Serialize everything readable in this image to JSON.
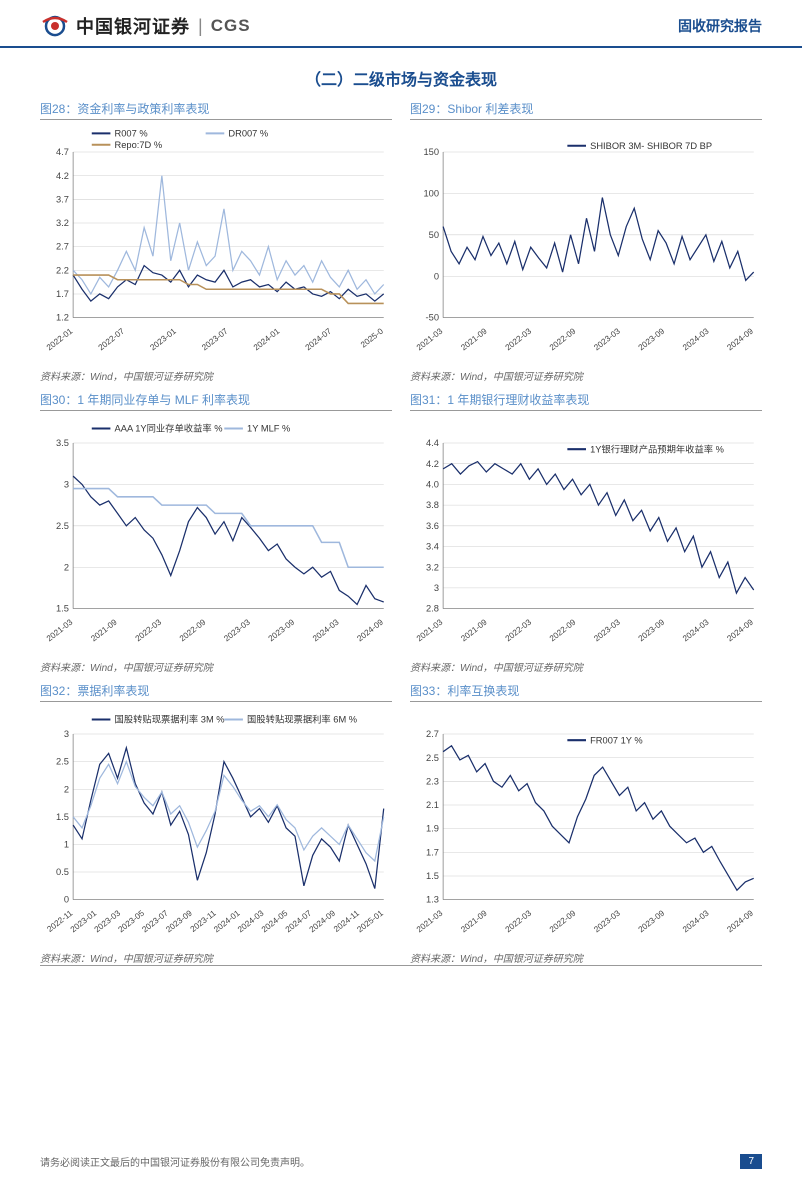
{
  "header": {
    "logo_cn": "中国银河证券",
    "logo_en": "CGS",
    "right_text": "固收研究报告"
  },
  "section_title": "（二）二级市场与资金表现",
  "source_text": "资料来源：Wind，中国银河证券研究院",
  "footer": {
    "disclaimer": "请务必阅读正文最后的中国银河证券股份有限公司免责声明。",
    "page": "7"
  },
  "colors": {
    "brand": "#1a4d8f",
    "accent": "#5a8fc9",
    "series_dark": "#1a2f6b",
    "series_light": "#9fb8dd",
    "series_gold": "#b8915a",
    "grid": "#d0d0d0",
    "axis": "#888"
  },
  "charts": [
    {
      "id": "c28",
      "title_prefix": "图28：",
      "title": "资金利率与政策利率表现",
      "type": "line",
      "ylim": [
        1.2,
        4.7
      ],
      "ytick_step": 0.5,
      "x_labels": [
        "2022-01",
        "2022-07",
        "2023-01",
        "2023-07",
        "2024-01",
        "2024-07",
        "2025-0"
      ],
      "legend": [
        {
          "label": "R007 %",
          "color": "#1a2f6b"
        },
        {
          "label": "DR007 %",
          "color": "#9fb8dd"
        },
        {
          "label": "Repo:7D %",
          "color": "#b8915a"
        }
      ],
      "series": [
        {
          "color": "#1a2f6b",
          "width": 1.2,
          "y": [
            2.1,
            1.8,
            1.55,
            1.7,
            1.6,
            1.85,
            2.0,
            1.9,
            2.3,
            2.15,
            2.1,
            1.95,
            2.2,
            1.85,
            2.1,
            2.0,
            1.95,
            2.2,
            1.85,
            1.95,
            2.0,
            1.85,
            1.9,
            1.75,
            1.95,
            1.8,
            1.85,
            1.7,
            1.65,
            1.75,
            1.6,
            1.8,
            1.65,
            1.7,
            1.55,
            1.7
          ]
        },
        {
          "color": "#9fb8dd",
          "width": 1.2,
          "y": [
            2.2,
            2.0,
            1.7,
            2.05,
            1.85,
            2.2,
            2.6,
            2.2,
            3.1,
            2.5,
            4.2,
            2.4,
            3.2,
            2.2,
            2.8,
            2.3,
            2.5,
            3.5,
            2.2,
            2.6,
            2.4,
            2.1,
            2.7,
            2.0,
            2.4,
            2.1,
            2.3,
            1.95,
            2.4,
            2.05,
            1.85,
            2.2,
            1.8,
            2.0,
            1.7,
            1.9
          ]
        },
        {
          "color": "#b8915a",
          "width": 1.5,
          "y": [
            2.1,
            2.1,
            2.1,
            2.1,
            2.1,
            2.0,
            2.0,
            2.0,
            2.0,
            2.0,
            2.0,
            2.0,
            2.0,
            1.9,
            1.9,
            1.8,
            1.8,
            1.8,
            1.8,
            1.8,
            1.8,
            1.8,
            1.8,
            1.8,
            1.8,
            1.8,
            1.8,
            1.8,
            1.8,
            1.7,
            1.7,
            1.5,
            1.5,
            1.5,
            1.5,
            1.5
          ]
        }
      ]
    },
    {
      "id": "c29",
      "title_prefix": "图29：",
      "title": "Shibor 利差表现",
      "type": "line",
      "ylim": [
        -50,
        150
      ],
      "ytick_step": 50,
      "x_labels": [
        "2021-03",
        "2021-09",
        "2022-03",
        "2022-09",
        "2023-03",
        "2023-09",
        "2024-03",
        "2024-09"
      ],
      "legend": [
        {
          "label": "SHIBOR 3M- SHIBOR 7D BP",
          "color": "#1a2f6b"
        }
      ],
      "series": [
        {
          "color": "#1a2f6b",
          "width": 1.2,
          "y": [
            60,
            30,
            15,
            35,
            20,
            48,
            25,
            40,
            15,
            42,
            8,
            35,
            22,
            10,
            40,
            5,
            50,
            15,
            70,
            30,
            95,
            50,
            25,
            60,
            82,
            45,
            20,
            55,
            40,
            15,
            48,
            20,
            35,
            50,
            18,
            42,
            10,
            30,
            -5,
            5
          ]
        }
      ]
    },
    {
      "id": "c30",
      "title_prefix": "图30：",
      "title": "1 年期同业存单与 MLF 利率表现",
      "type": "line",
      "ylim": [
        1.5,
        3.5
      ],
      "ytick_step": 0.5,
      "x_labels": [
        "2021-03",
        "2021-09",
        "2022-03",
        "2022-09",
        "2023-03",
        "2023-09",
        "2024-03",
        "2024-09"
      ],
      "legend": [
        {
          "label": "AAA 1Y同业存单收益率 %",
          "color": "#1a2f6b"
        },
        {
          "label": "1Y MLF %",
          "color": "#9fb8dd"
        }
      ],
      "series": [
        {
          "color": "#1a2f6b",
          "width": 1.2,
          "y": [
            3.1,
            3.0,
            2.85,
            2.75,
            2.8,
            2.65,
            2.5,
            2.6,
            2.45,
            2.35,
            2.15,
            1.9,
            2.2,
            2.55,
            2.72,
            2.6,
            2.4,
            2.55,
            2.32,
            2.6,
            2.48,
            2.35,
            2.2,
            2.28,
            2.1,
            2.0,
            1.92,
            2.0,
            1.88,
            1.95,
            1.72,
            1.65,
            1.55,
            1.78,
            1.62,
            1.58
          ]
        },
        {
          "color": "#9fb8dd",
          "width": 1.5,
          "y": [
            2.95,
            2.95,
            2.95,
            2.95,
            2.95,
            2.85,
            2.85,
            2.85,
            2.85,
            2.85,
            2.75,
            2.75,
            2.75,
            2.75,
            2.75,
            2.75,
            2.65,
            2.65,
            2.65,
            2.65,
            2.5,
            2.5,
            2.5,
            2.5,
            2.5,
            2.5,
            2.5,
            2.5,
            2.3,
            2.3,
            2.3,
            2.0,
            2.0,
            2.0,
            2.0,
            2.0
          ]
        }
      ]
    },
    {
      "id": "c31",
      "title_prefix": "图31：",
      "title": "1 年期银行理财收益率表现",
      "type": "line",
      "ylim": [
        2.8,
        4.4
      ],
      "ytick_step": 0.2,
      "x_labels": [
        "2021-03",
        "2021-09",
        "2022-03",
        "2022-09",
        "2023-03",
        "2023-09",
        "2024-03",
        "2024-09"
      ],
      "legend": [
        {
          "label": "1Y银行理财产品预期年收益率 %",
          "color": "#1a2f6b"
        }
      ],
      "series": [
        {
          "color": "#1a2f6b",
          "width": 1.2,
          "y": [
            4.15,
            4.2,
            4.1,
            4.18,
            4.22,
            4.12,
            4.2,
            4.15,
            4.1,
            4.2,
            4.05,
            4.15,
            4.0,
            4.1,
            3.95,
            4.05,
            3.9,
            4.0,
            3.8,
            3.92,
            3.7,
            3.85,
            3.65,
            3.75,
            3.55,
            3.68,
            3.45,
            3.58,
            3.35,
            3.5,
            3.2,
            3.35,
            3.1,
            3.25,
            2.95,
            3.1,
            2.98
          ]
        }
      ]
    },
    {
      "id": "c32",
      "title_prefix": "图32：",
      "title": "票据利率表现",
      "type": "line",
      "ylim": [
        0,
        3.0
      ],
      "ytick_step": 0.5,
      "x_labels": [
        "2022-11",
        "2023-01",
        "2023-03",
        "2023-05",
        "2023-07",
        "2023-09",
        "2023-11",
        "2024-01",
        "2024-03",
        "2024-05",
        "2024-07",
        "2024-09",
        "2024-11",
        "2025-01"
      ],
      "legend": [
        {
          "label": "国股转贴现票据利率 3M %",
          "color": "#1a2f6b"
        },
        {
          "label": "国股转贴现票据利率 6M %",
          "color": "#9fb8dd"
        }
      ],
      "series": [
        {
          "color": "#1a2f6b",
          "width": 1.2,
          "y": [
            1.35,
            1.1,
            1.8,
            2.45,
            2.65,
            2.2,
            2.75,
            2.1,
            1.75,
            1.55,
            1.95,
            1.35,
            1.6,
            1.18,
            0.35,
            0.85,
            1.55,
            2.5,
            2.2,
            1.85,
            1.5,
            1.65,
            1.4,
            1.7,
            1.3,
            1.15,
            0.25,
            0.8,
            1.1,
            0.95,
            0.7,
            1.35,
            1.0,
            0.65,
            0.2,
            1.65
          ]
        },
        {
          "color": "#9fb8dd",
          "width": 1.2,
          "y": [
            1.5,
            1.3,
            1.7,
            2.2,
            2.45,
            2.1,
            2.5,
            2.05,
            1.85,
            1.7,
            1.95,
            1.55,
            1.7,
            1.4,
            0.95,
            1.25,
            1.6,
            2.25,
            2.05,
            1.8,
            1.6,
            1.7,
            1.5,
            1.72,
            1.45,
            1.3,
            0.9,
            1.15,
            1.3,
            1.15,
            1.0,
            1.35,
            1.1,
            0.85,
            0.7,
            1.5
          ]
        }
      ]
    },
    {
      "id": "c33",
      "title_prefix": "图33：",
      "title": "利率互换表现",
      "type": "line",
      "ylim": [
        1.3,
        2.7
      ],
      "ytick_step": 0.2,
      "x_labels": [
        "2021-03",
        "2021-09",
        "2022-03",
        "2022-09",
        "2023-03",
        "2023-09",
        "2024-03",
        "2024-09"
      ],
      "legend": [
        {
          "label": "FR007 1Y %",
          "color": "#1a2f6b"
        }
      ],
      "series": [
        {
          "color": "#1a2f6b",
          "width": 1.2,
          "y": [
            2.55,
            2.6,
            2.48,
            2.52,
            2.38,
            2.45,
            2.3,
            2.25,
            2.35,
            2.22,
            2.28,
            2.12,
            2.05,
            1.92,
            1.85,
            1.78,
            2.0,
            2.15,
            2.35,
            2.42,
            2.3,
            2.18,
            2.25,
            2.05,
            2.12,
            1.98,
            2.05,
            1.92,
            1.85,
            1.78,
            1.82,
            1.7,
            1.75,
            1.62,
            1.5,
            1.38,
            1.45,
            1.48
          ]
        }
      ]
    }
  ]
}
